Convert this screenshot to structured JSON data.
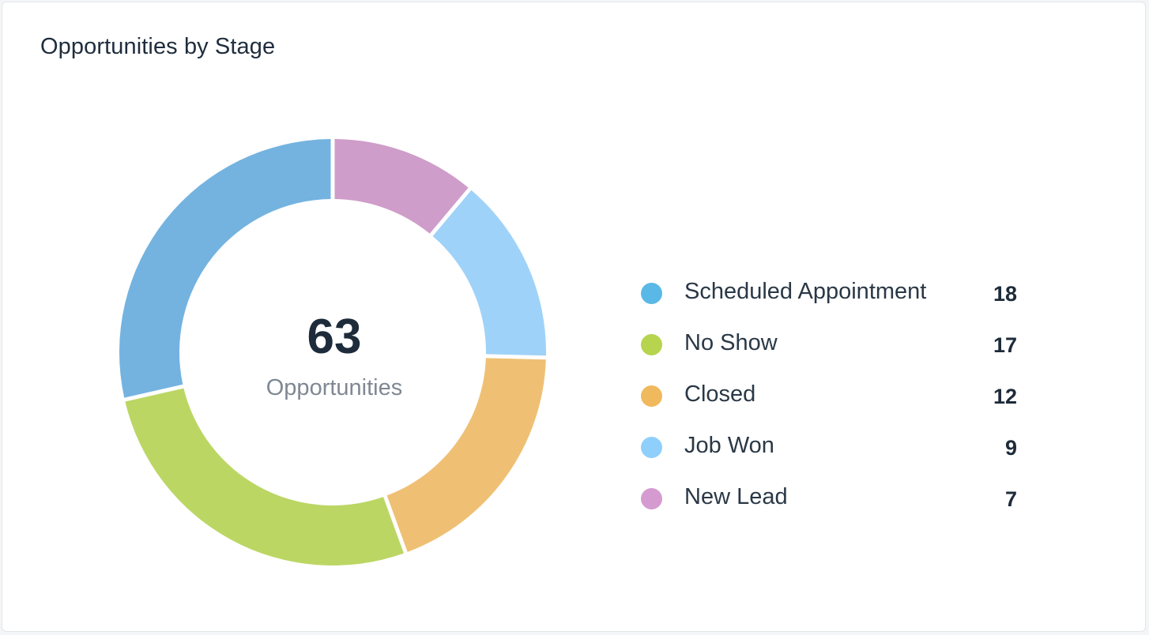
{
  "widget": {
    "title": "Opportunities by Stage",
    "total_value": "63",
    "total_label": "Opportunities"
  },
  "chart_data": {
    "type": "pie",
    "title": "Opportunities by Stage",
    "donut": true,
    "center_text": {
      "value": "63",
      "label": "Opportunities"
    },
    "categories": [
      "Scheduled Appointment",
      "No Show",
      "Closed",
      "Job Won",
      "New Lead"
    ],
    "values": [
      18,
      17,
      12,
      9,
      7
    ],
    "colors": [
      "#74b3e0",
      "#bcd664",
      "#efc074",
      "#9fd2f8",
      "#cf9dca"
    ],
    "legend_dot_colors": [
      "#5ab8e6",
      "#b6d44e",
      "#f0b95e",
      "#8fcffc",
      "#d59bd0"
    ],
    "legend_position": "right",
    "slice_order": [
      "New Lead",
      "Job Won",
      "Closed",
      "No Show",
      "Scheduled Appointment"
    ]
  }
}
